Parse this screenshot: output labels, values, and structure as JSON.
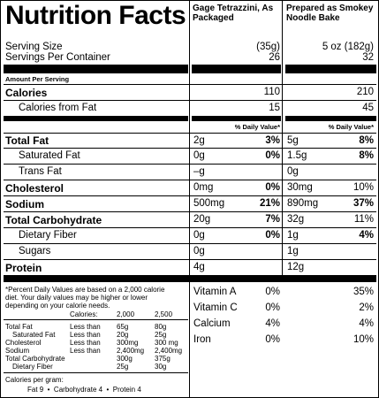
{
  "title": "Nutrition Facts",
  "columns": [
    "Gage Tetrazzini, As Packaged",
    "Prepared as Smokey Noodle Bake"
  ],
  "serving": {
    "label_size": "Serving Size",
    "size_values": [
      "(35g)",
      "5 oz (182g)"
    ],
    "label_per_container": "Servings Per Container",
    "per_container_values": [
      "26",
      "32"
    ]
  },
  "amount_per_serving": "Amount Per Serving",
  "calories": {
    "label": "Calories",
    "values": [
      "110",
      "210"
    ]
  },
  "calories_from_fat": {
    "label": "Calories from Fat",
    "values": [
      "15",
      "45"
    ]
  },
  "dv_header": "% Daily Value*",
  "nutrients": [
    {
      "name": "Total Fat",
      "c1_amt": "2g",
      "c1_dv": "3%",
      "c2_amt": "5g",
      "c2_dv": "8%"
    },
    {
      "name": "Saturated Fat",
      "c1_amt": "0g",
      "c1_dv": "0%",
      "c2_amt": "1.5g",
      "c2_dv": "8%"
    },
    {
      "name": "Trans Fat",
      "c1_amt": "–g",
      "c1_dv": "",
      "c2_amt": "0g",
      "c2_dv": ""
    },
    {
      "name": "Cholesterol",
      "c1_amt": "0mg",
      "c1_dv": "0%",
      "c2_amt": "30mg",
      "c2_dv": "10%"
    },
    {
      "name": "Sodium",
      "c1_amt": "500mg",
      "c1_dv": "21%",
      "c2_amt": "890mg",
      "c2_dv": "37%"
    },
    {
      "name": "Total Carbohydrate",
      "c1_amt": "20g",
      "c1_dv": "7%",
      "c2_amt": "32g",
      "c2_dv": "11%"
    },
    {
      "name": "Dietary Fiber",
      "c1_amt": "0g",
      "c1_dv": "0%",
      "c2_amt": "1g",
      "c2_dv": "4%"
    },
    {
      "name": "Sugars",
      "c1_amt": "0g",
      "c1_dv": "",
      "c2_amt": "1g",
      "c2_dv": ""
    },
    {
      "name": "Protein",
      "c1_amt": "4g",
      "c1_dv": "",
      "c2_amt": "12g",
      "c2_dv": ""
    }
  ],
  "vitamins": [
    {
      "name": "Vitamin A",
      "c1": "0%",
      "c2": "35%"
    },
    {
      "name": "Vitamin C",
      "c1": "0%",
      "c2": "2%"
    },
    {
      "name": "Calcium",
      "c1": "4%",
      "c2": "4%"
    },
    {
      "name": "Iron",
      "c1": "0%",
      "c2": "10%"
    }
  ],
  "footnote": {
    "line1": "*Percent Daily Values are based on a 2,000 calorie",
    "line2": "diet. Your daily values may be higher or lower",
    "line3": "depending on your calorie needs.",
    "calories_label": "Calories:",
    "cal_2000": "2,000",
    "cal_2500": "2,500",
    "table": [
      {
        "name": "Total Fat",
        "qual": "Less than",
        "v1": "65g",
        "v2": "80g"
      },
      {
        "name": "Saturated Fat",
        "qual": "Less than",
        "v1": "20g",
        "v2": "25g"
      },
      {
        "name": "Cholesterol",
        "qual": "Less than",
        "v1": "300mg",
        "v2": "300 mg"
      },
      {
        "name": "Sodium",
        "qual": "Less than",
        "v1": "2,400mg",
        "v2": "2,400mg"
      },
      {
        "name": "Total Carbohydrate",
        "qual": "",
        "v1": "300g",
        "v2": "375g"
      },
      {
        "name": "Dietary Fiber",
        "qual": "",
        "v1": "25g",
        "v2": "30g"
      }
    ],
    "cal_per_gram": "Calories per gram:",
    "cal_per_gram_values": "Fat 9  •  Carbohydrate 4  •  Protein 4"
  }
}
